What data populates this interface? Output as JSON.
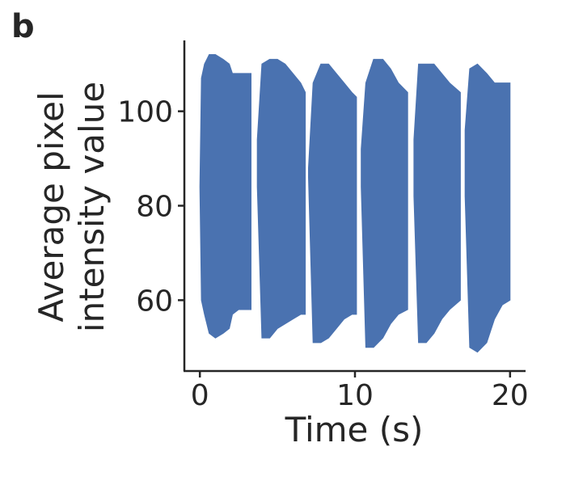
{
  "panel_label": "b",
  "chart_data": {
    "type": "area",
    "xlabel": "Time (s)",
    "ylabel_lines": [
      "Average pixel",
      "intensity value"
    ],
    "xlim": [
      -1,
      21
    ],
    "ylim": [
      45,
      115
    ],
    "xticks": [
      0,
      10,
      20
    ],
    "yticks": [
      60,
      80,
      100
    ],
    "grid": false,
    "legend": "none",
    "series_color": "#4a72b0",
    "description_note": "",
    "series": [
      {
        "kind": "envelope",
        "segments": [
          {
            "x": [
              0.0,
              0.1,
              0.3,
              0.6,
              1.0,
              1.5,
              1.9,
              2.1,
              2.5,
              3.0,
              3.3
            ],
            "upper": [
              84,
              107,
              110,
              112,
              112,
              111,
              110,
              108,
              108,
              108,
              108
            ],
            "lower": [
              84,
              60,
              57,
              53,
              52,
              53,
              54,
              57,
              58,
              58,
              58
            ]
          },
          {
            "x": [
              3.7,
              4.0,
              4.5,
              5.0,
              5.5,
              6.0,
              6.5,
              6.8
            ],
            "upper": [
              94,
              110,
              111,
              111,
              110,
              108,
              106,
              104
            ],
            "lower": [
              84,
              52,
              52,
              54,
              55,
              56,
              57,
              57
            ]
          },
          {
            "x": [
              7.0,
              7.3,
              7.8,
              8.3,
              8.8,
              9.3,
              9.8,
              10.1
            ],
            "upper": [
              88,
              106,
              110,
              110,
              108,
              106,
              104,
              103
            ],
            "lower": [
              86,
              51,
              51,
              52,
              54,
              56,
              57,
              57
            ]
          },
          {
            "x": [
              10.4,
              10.7,
              11.2,
              11.8,
              12.3,
              12.8,
              13.4
            ],
            "upper": [
              92,
              106,
              111,
              111,
              109,
              106,
              104
            ],
            "lower": [
              84,
              50,
              50,
              52,
              55,
              57,
              58
            ]
          },
          {
            "x": [
              13.8,
              14.1,
              14.6,
              15.1,
              15.6,
              16.1,
              16.8
            ],
            "upper": [
              94,
              110,
              110,
              110,
              108,
              106,
              104
            ],
            "lower": [
              82,
              51,
              51,
              53,
              56,
              58,
              60
            ]
          },
          {
            "x": [
              17.1,
              17.4,
              17.9,
              18.5,
              19.0,
              19.5,
              20.0
            ],
            "upper": [
              96,
              109,
              110,
              108,
              106,
              106,
              106
            ],
            "lower": [
              82,
              50,
              49,
              51,
              56,
              59,
              60
            ]
          }
        ]
      }
    ]
  }
}
